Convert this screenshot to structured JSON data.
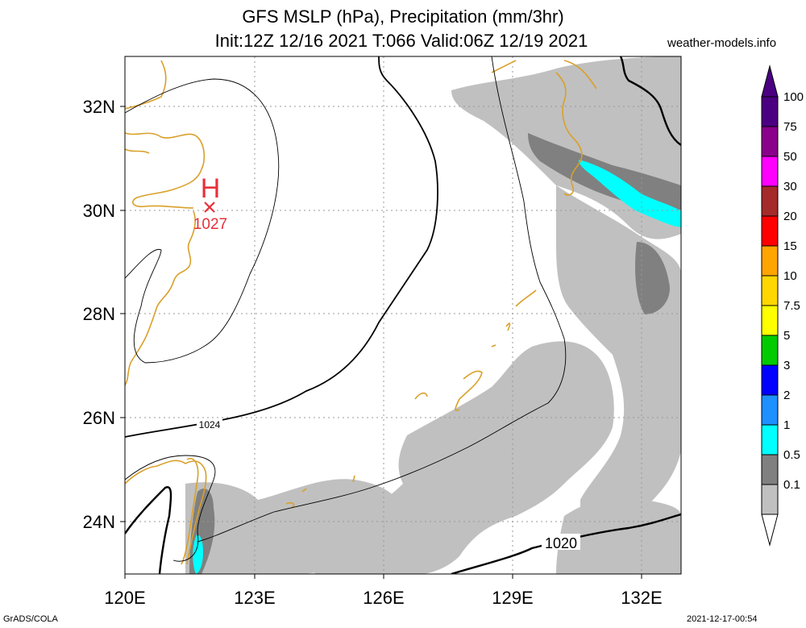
{
  "title": {
    "line1": "GFS MSLP (hPa), Precipitation (mm/3hr)",
    "line2": "Init:12Z 12/16 2021 T:066 Valid:06Z 12/19 2021"
  },
  "site": "weather-models.info",
  "footer": {
    "left": "GrADS/COLA",
    "right": "2021-12-17-00:54"
  },
  "map": {
    "lon_ticks": [
      "120E",
      "123E",
      "126E",
      "129E",
      "132E"
    ],
    "lat_ticks": [
      "32N",
      "30N",
      "28N",
      "26N",
      "24N"
    ],
    "high": {
      "symbol": "H",
      "value": "1027",
      "color": "#e8303a"
    },
    "isobar_labels": [
      "1024",
      "1020"
    ],
    "coast_color": "#d9a02a"
  },
  "legend": {
    "levels": [
      {
        "label": "100",
        "color": "#4b0082"
      },
      {
        "label": "75",
        "color": "#8b008b"
      },
      {
        "label": "50",
        "color": "#ff00ff"
      },
      {
        "label": "30",
        "color": "#a52a2a"
      },
      {
        "label": "20",
        "color": "#ff0000"
      },
      {
        "label": "15",
        "color": "#ffa500"
      },
      {
        "label": "10",
        "color": "#ffd700"
      },
      {
        "label": "7.5",
        "color": "#ffff00"
      },
      {
        "label": "5",
        "color": "#00cc00"
      },
      {
        "label": "3",
        "color": "#0000ff"
      },
      {
        "label": "2",
        "color": "#1e90ff"
      },
      {
        "label": "1",
        "color": "#00ffff"
      },
      {
        "label": "0.5",
        "color": "#808080"
      },
      {
        "label": "0.1",
        "color": "#c0c0c0"
      }
    ]
  }
}
